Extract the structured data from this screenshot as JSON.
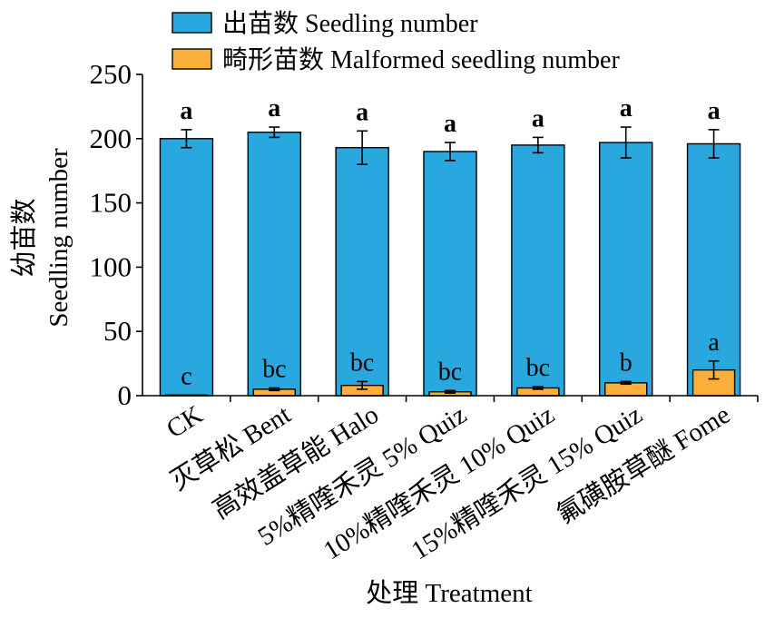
{
  "chart_data": {
    "type": "bar",
    "categories": [
      "CK",
      "灭草松 Bent",
      "高效盖草能 Halo",
      "5%精喹禾灵 5% Quiz",
      "10%精喹禾灵 10% Quiz",
      "15%精喹禾灵 15% Quiz",
      "氟磺胺草醚 Fome"
    ],
    "series": [
      {
        "name": "出苗数 Seedling number",
        "values": [
          200,
          205,
          193,
          190,
          195,
          197,
          196
        ],
        "errors": [
          7,
          4,
          13,
          7,
          6,
          12,
          11
        ],
        "letters": [
          "a",
          "a",
          "a",
          "a",
          "a",
          "a",
          "a"
        ],
        "color": "#29a8e0"
      },
      {
        "name": "畸形苗数 Malformed seedling number",
        "values": [
          0.5,
          5,
          8,
          3,
          6,
          10,
          20
        ],
        "errors": [
          0,
          1,
          3,
          1,
          1,
          1,
          7
        ],
        "letters": [
          "c",
          "bc",
          "bc",
          "bc",
          "bc",
          "b",
          "a"
        ],
        "color": "#fbb03b"
      }
    ],
    "xlabel": "处理 Treatment",
    "ylabel": [
      "幼苗数",
      "Seedling number"
    ],
    "ylim": [
      0,
      250
    ],
    "yticks": [
      0,
      50,
      100,
      150,
      200,
      250
    ],
    "legend": "top",
    "grid": false
  }
}
